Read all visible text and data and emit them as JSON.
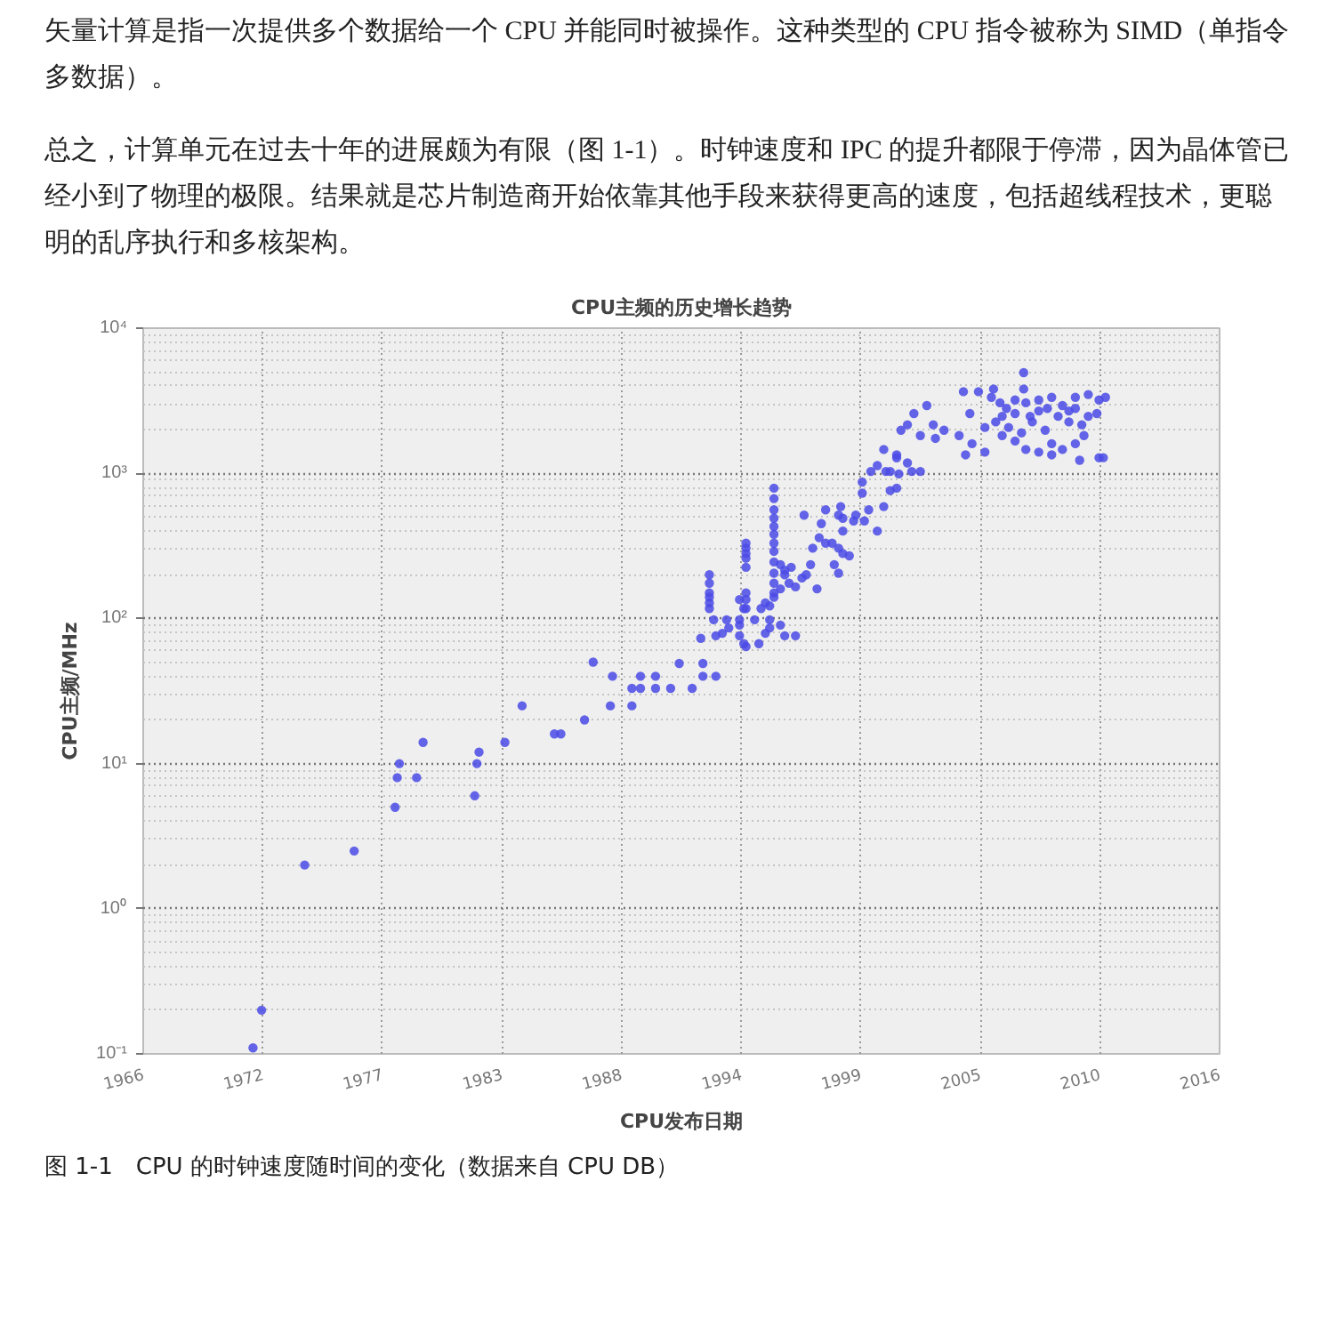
{
  "chart_data": {
    "type": "scatter",
    "title": "CPU主频的历史增长趋势",
    "xlabel": "CPU发布日期",
    "ylabel": "CPU主频/MHz",
    "annotations": [
      "矢量计算是指一次提供多个数据给一个 CPU 并能同时被操作。这种类型的 CPU 指令被称为 SIMD（单指令多数据）。",
      "总之，计算单元在过去十年的进展颇为有限（图 1-1）。时钟速度和 IPC 的提升都限于停滞，因为晶体管已经小到了物理的极限。结果就是芯片制造商开始依靠其他手段来获得更高的速度，包括超线程技术，更聪明的乱序执行和多核架构。",
      "图 1-1　CPU 的时钟速度随时间的变化（数据来自 CPU DB）"
    ],
    "log": "y",
    "grid": true,
    "marker": "circle",
    "xlim": [
      1966,
      2016
    ],
    "ylim": [
      0.1,
      10000
    ],
    "xticks": [
      {
        "value": 1966,
        "label": "1966"
      },
      {
        "value": 1971.56,
        "label": "1972"
      },
      {
        "value": 1977.11,
        "label": "1977"
      },
      {
        "value": 1982.67,
        "label": "1983"
      },
      {
        "value": 1988.22,
        "label": "1988"
      },
      {
        "value": 1993.78,
        "label": "1994"
      },
      {
        "value": 1999.33,
        "label": "1999"
      },
      {
        "value": 2004.89,
        "label": "2005"
      },
      {
        "value": 2010.44,
        "label": "2010"
      },
      {
        "value": 2016,
        "label": "2016"
      }
    ],
    "yticks": [
      {
        "value": 0.1,
        "label": "10⁻¹"
      },
      {
        "value": 1,
        "label": "10⁰"
      },
      {
        "value": 10,
        "label": "10¹"
      },
      {
        "value": 100,
        "label": "10²"
      },
      {
        "value": 1000,
        "label": "10³"
      },
      {
        "value": 10000,
        "label": "10⁴"
      }
    ],
    "series": [
      {
        "color": "#4a4ae6",
        "x": [
          1971.1,
          1971.5,
          1973.5,
          1975.8,
          1977.7,
          1977.8,
          1977.9,
          1978.7,
          1979.0,
          1981.4,
          1981.5,
          1981.6,
          1982.8,
          1983.6,
          1985.1,
          1985.4,
          1986.5,
          1987.7,
          1988.7,
          1986.9,
          1987.8,
          1988.7,
          1989.1,
          1989.1,
          1989.8,
          1989.8,
          1990.5,
          1991.5,
          1990.9,
          1992.0,
          1992.0,
          1992.6,
          1992.3,
          1992.3,
          1992.3,
          1992.3,
          1992.3,
          1992.3,
          1993.1,
          1992.5,
          1993.7,
          1994.4,
          1995.1,
          1991.9,
          1992.6,
          1992.9,
          1993.2,
          1993.7,
          1993.7,
          1993.9,
          1994.0,
          1994.6,
          1994.9,
          1995.1,
          1995.6,
          1995.8,
          1996.3,
          1994.0,
          1994.0,
          1994.0,
          1994.0,
          1994.0,
          1994.0,
          1994.0,
          1994.0,
          1993.7,
          1993.9,
          1994.7,
          1994.9,
          1995.1,
          1995.3,
          1995.6,
          1995.8,
          1996.1,
          1995.3,
          1995.3,
          1995.3,
          1995.3,
          1995.3,
          1995.3,
          1995.3,
          1995.3,
          1995.3,
          1995.3,
          1995.3,
          1995.3,
          1995.6,
          1995.8,
          1996.0,
          1996.3,
          1996.6,
          1996.8,
          1997.0,
          1997.3,
          1996.7,
          1997.1,
          1997.4,
          1997.7,
          1997.7,
          1998.0,
          1998.3,
          1998.1,
          1998.3,
          1998.5,
          1998.8,
          1997.5,
          1998.3,
          1998.5,
          1999.1,
          1998.4,
          1998.5,
          1999.0,
          1999.4,
          1999.4,
          1999.5,
          1999.7,
          2000.1,
          2000.4,
          2000.5,
          2000.7,
          2001.0,
          2001.1,
          1999.8,
          2000.1,
          2000.7,
          2001.0,
          2001.0,
          2000.4,
          2001.5,
          2001.7,
          2002.1,
          2001.2,
          2001.5,
          2001.8,
          2002.1,
          2002.4,
          2002.7,
          2002.8,
          2003.2,
          2003.9,
          2004.1,
          2004.4,
          2004.2,
          2004.5,
          2004.8,
          2005.1,
          2005.1,
          2005.4,
          2005.5,
          2006.9,
          2006.9,
          2005.8,
          2006.1,
          2006.5,
          2007.0,
          2007.6,
          2008.2,
          2008.7,
          2009.3,
          2009.9,
          2010.4,
          2010.7,
          2005.6,
          2006.2,
          2006.8,
          2007.3,
          2007.9,
          2008.5,
          2009.0,
          2009.6,
          2009.9,
          2005.9,
          2006.5,
          2007.0,
          2007.6,
          2008.2,
          2008.7,
          2009.3,
          2009.5,
          2009.7,
          2010.3,
          2010.4,
          2010.6,
          2007.2,
          2008.0,
          2009.0,
          2006.5,
          2007.6,
          2009.3,
          2005.9,
          2008.2
        ],
        "values": [
          0.11,
          0.2,
          2,
          2.5,
          5,
          8,
          10,
          8,
          14,
          6,
          10,
          12,
          14,
          25,
          16,
          16,
          20,
          25,
          25,
          50,
          40,
          33,
          40,
          33,
          40,
          33,
          33,
          33,
          49,
          49,
          40,
          40,
          200,
          175,
          150,
          140,
          128,
          117,
          98,
          98,
          98,
          98,
          98,
          73,
          76,
          79,
          86,
          90,
          76,
          67,
          64,
          67,
          79,
          86,
          90,
          76,
          76,
          330,
          305,
          280,
          260,
          225,
          150,
          135,
          117,
          135,
          117,
          117,
          128,
          122,
          140,
          160,
          200,
          225,
          790,
          670,
          560,
          490,
          430,
          380,
          330,
          290,
          245,
          205,
          175,
          150,
          235,
          215,
          175,
          165,
          190,
          200,
          235,
          160,
          515,
          305,
          360,
          560,
          330,
          330,
          305,
          235,
          205,
          280,
          270,
          450,
          515,
          490,
          515,
          590,
          400,
          470,
          730,
          870,
          470,
          560,
          400,
          590,
          1030,
          760,
          790,
          990,
          1030,
          1130,
          1030,
          1280,
          1340,
          1460,
          1180,
          1030,
          1030,
          1980,
          2160,
          2580,
          1820,
          2930,
          2160,
          1740,
          1980,
          1820,
          3650,
          2580,
          1340,
          1600,
          3650,
          1400,
          2070,
          3340,
          3810,
          4940,
          3810,
          3060,
          2800,
          2580,
          3060,
          3200,
          3340,
          2930,
          3340,
          3490,
          3200,
          3340,
          2260,
          2070,
          1900,
          2260,
          1980,
          2470,
          2260,
          2160,
          2470,
          1820,
          1670,
          1460,
          1400,
          1600,
          1460,
          1600,
          1230,
          1820,
          2580,
          1280,
          1280,
          2470,
          2800,
          2690,
          3200,
          2690,
          2800,
          2470,
          1340
        ]
      }
    ]
  }
}
